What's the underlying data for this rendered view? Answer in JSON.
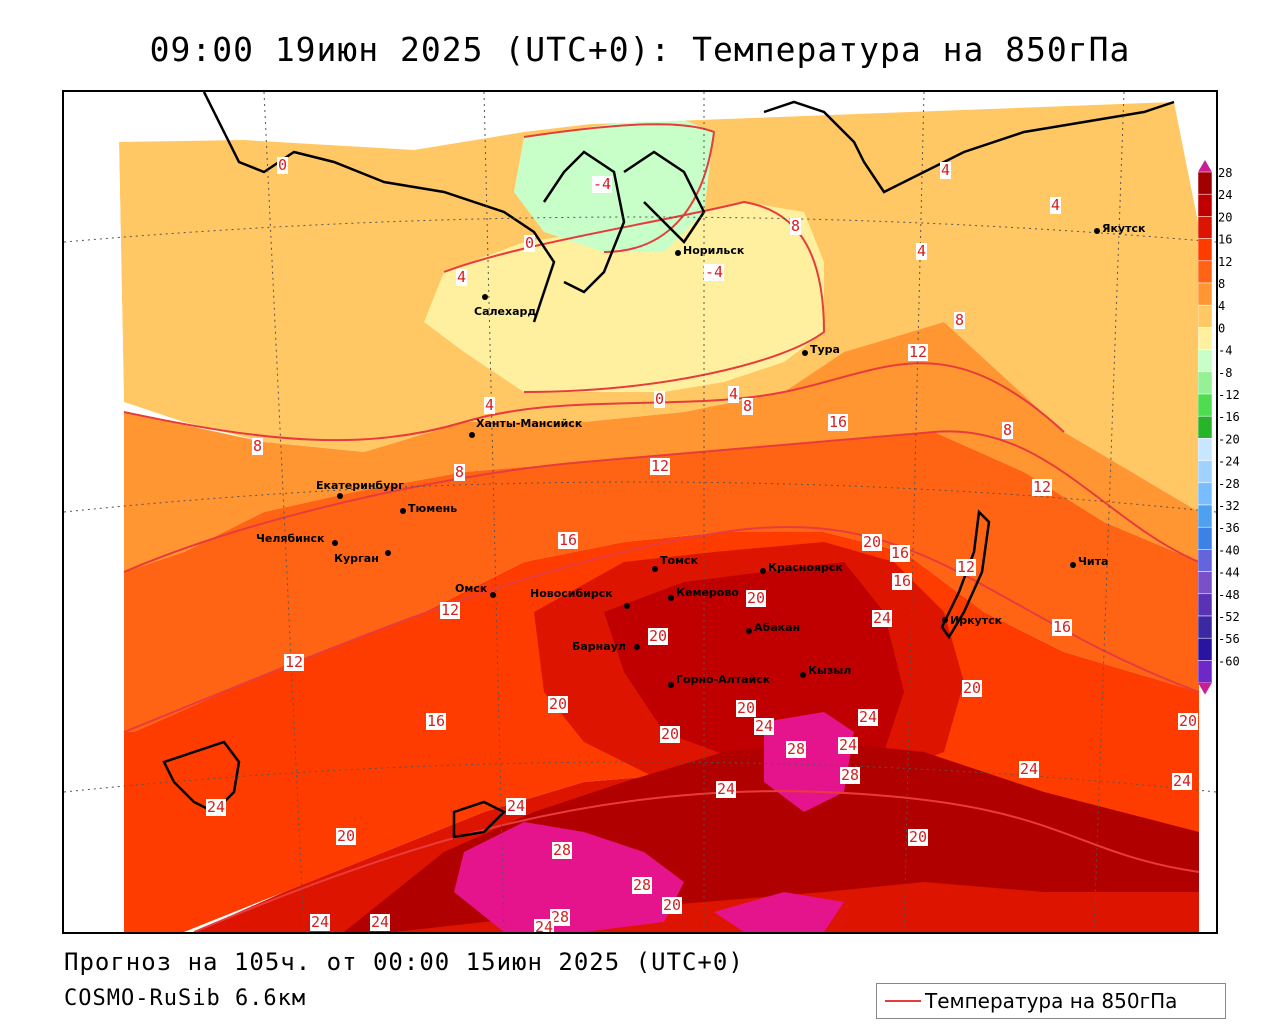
{
  "title": "09:00 19июн 2025 (UTC+0): Температура на 850гПа",
  "forecast_line": "Прогноз на 105ч. от 00:00 15июн 2025 (UTC+0)",
  "model_line": "COSMO-RuSib 6.6км",
  "legend_label": "Температура на 850гПа",
  "legend_color": "#e83c3c",
  "scale": {
    "ticks": [
      "28",
      "24",
      "20",
      "16",
      "12",
      "8",
      "4",
      "0",
      "-4",
      "-8",
      "-12",
      "-16",
      "-20",
      "-24",
      "-28",
      "-32",
      "-36",
      "-40",
      "-44",
      "-48",
      "-52",
      "-56",
      "-60"
    ],
    "colors": [
      "#a00000",
      "#c00000",
      "#dc1400",
      "#ff3c00",
      "#ff6414",
      "#ff9632",
      "#ffc864",
      "#fff0a0",
      "#c8ffc8",
      "#96f096",
      "#50dc50",
      "#28b428",
      "#c8e6ff",
      "#a0d2ff",
      "#78beff",
      "#50a0f0",
      "#3c82e6",
      "#6464dc",
      "#7850c8",
      "#5a32b4",
      "#3c28a0",
      "#2814a0",
      "#6e28c8"
    ]
  },
  "cities": [
    {
      "name": "Норильск"
    },
    {
      "name": "Якутск"
    },
    {
      "name": "Салехард"
    },
    {
      "name": "Тура"
    },
    {
      "name": "Ханты-Мансийск"
    },
    {
      "name": "Екатеринбург"
    },
    {
      "name": "Тюмень"
    },
    {
      "name": "Челябинск"
    },
    {
      "name": "Курган"
    },
    {
      "name": "Омск"
    },
    {
      "name": "Новосибирск"
    },
    {
      "name": "Томск"
    },
    {
      "name": "Кемерово"
    },
    {
      "name": "Красноярск"
    },
    {
      "name": "Абакан"
    },
    {
      "name": "Барнаул"
    },
    {
      "name": "Горно-Алтайск"
    },
    {
      "name": "Кызыл"
    },
    {
      "name": "Иркутск"
    },
    {
      "name": "Чита"
    }
  ],
  "contour_labels": [
    "0",
    "0",
    "-4",
    "4",
    "-4",
    "8",
    "4",
    "4",
    "4",
    "4",
    "8",
    "8",
    "0",
    "4",
    "8",
    "12",
    "16",
    "8",
    "8",
    "12",
    "12",
    "16",
    "16",
    "20",
    "16",
    "12",
    "12",
    "20",
    "24",
    "20",
    "20",
    "16",
    "12",
    "16",
    "20",
    "20",
    "24",
    "24",
    "28",
    "24",
    "28",
    "20",
    "24",
    "24",
    "24",
    "20",
    "28",
    "28",
    "20",
    "24",
    "24",
    "28",
    "24",
    "20",
    "24",
    "24",
    "20"
  ]
}
